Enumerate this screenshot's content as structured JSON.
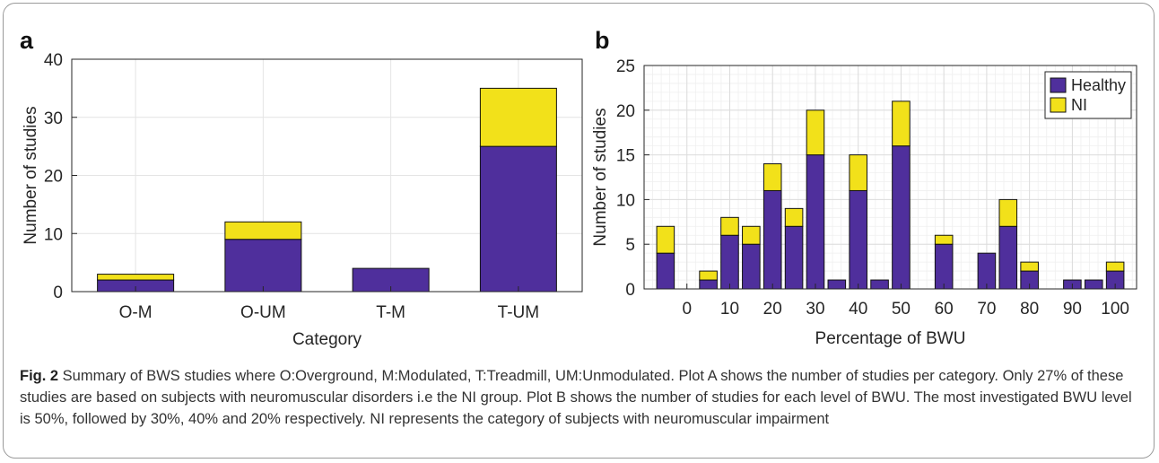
{
  "panels": {
    "a": "a",
    "b": "b"
  },
  "colors": {
    "healthy": "#4f2f9c",
    "ni": "#f2e11a",
    "grid": "#e4e4e4",
    "axis": "#262626"
  },
  "chart_data": [
    {
      "type": "bar",
      "stacked": true,
      "categories": [
        "O-M",
        "O-UM",
        "T-M",
        "T-UM"
      ],
      "series": [
        {
          "name": "",
          "values": [
            2,
            9,
            4,
            25
          ]
        },
        {
          "name": "",
          "values": [
            1,
            3,
            0,
            10
          ]
        }
      ],
      "yticks": [
        "0",
        "10",
        "20",
        "30",
        "40"
      ],
      "xlabel": "Category",
      "ylabel": "Number of studies",
      "ylim": [
        0,
        40
      ],
      "grid": true
    },
    {
      "type": "bar",
      "stacked": true,
      "x": [
        -5,
        0,
        5,
        10,
        15,
        20,
        25,
        30,
        35,
        40,
        45,
        50,
        55,
        60,
        65,
        70,
        75,
        80,
        85,
        90,
        95,
        100
      ],
      "series": [
        {
          "name": "Healthy",
          "values": [
            4,
            0,
            1,
            6,
            5,
            11,
            7,
            15,
            1,
            11,
            1,
            16,
            0,
            5,
            0,
            4,
            7,
            2,
            0,
            1,
            1,
            2
          ]
        },
        {
          "name": "NI",
          "values": [
            3,
            0,
            1,
            2,
            2,
            3,
            2,
            5,
            0,
            4,
            0,
            5,
            0,
            1,
            0,
            0,
            3,
            1,
            0,
            0,
            0,
            1
          ]
        }
      ],
      "xticks": [
        "0",
        "10",
        "20",
        "30",
        "40",
        "50",
        "60",
        "70",
        "80",
        "90",
        "100"
      ],
      "yticks": [
        "0",
        "5",
        "10",
        "15",
        "20",
        "25"
      ],
      "xlabel": "Percentage of BWU",
      "ylabel": "Number of studies",
      "ylim": [
        0,
        25
      ],
      "legend": "top-right",
      "grid": true
    }
  ],
  "caption": {
    "label": "Fig. 2",
    "text": " Summary of BWS studies where O:Overground, M:Modulated, T:Treadmill, UM:Unmodulated. Plot A shows the number of studies per category. Only 27% of these studies are based on subjects with neuromuscular disorders i.e the NI group. Plot B shows the number of studies for each level of BWU. The most investigated BWU level is 50%, followed by 30%, 40% and 20% respectively. NI represents the category of subjects with neuromuscular impairment"
  }
}
